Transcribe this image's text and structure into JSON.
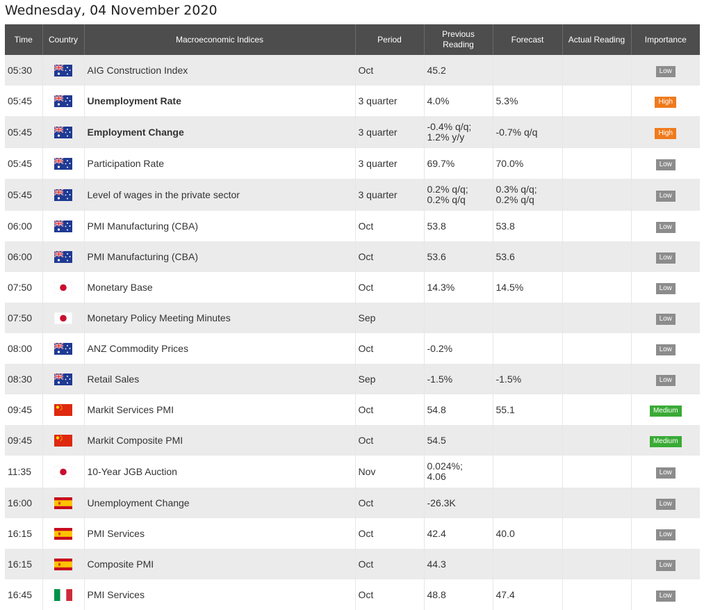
{
  "title": "Wednesday, 04 November 2020",
  "columns": [
    "Time",
    "Country",
    "Macroeconomic Indices",
    "Period",
    "Previous Reading",
    "Forecast",
    "Actual Reading",
    "Importance"
  ],
  "colors": {
    "Low": "#8c8c8c",
    "High": "#f07a1c",
    "Medium": "#3aaa35",
    "header_bg": "#4d4d4d",
    "row_alt": "#ebebeb"
  },
  "rows": [
    {
      "time": "05:30",
      "country": "australia-flag-icon",
      "index": "AIG Construction Index",
      "bold": false,
      "period": "Oct",
      "previous": "45.2",
      "forecast": "",
      "actual": "",
      "importance": "Low"
    },
    {
      "time": "05:45",
      "country": "australia-flag-icon",
      "index": "Unemployment Rate",
      "bold": true,
      "period": "3 quarter",
      "previous": "4.0%",
      "forecast": "5.3%",
      "actual": "",
      "importance": "High"
    },
    {
      "time": "05:45",
      "country": "australia-flag-icon",
      "index": "Employment Change",
      "bold": true,
      "period": "3 quarter",
      "previous": "-0.4% q/q;\n1.2% y/y",
      "forecast": "-0.7% q/q",
      "actual": "",
      "importance": "High"
    },
    {
      "time": "05:45",
      "country": "australia-flag-icon",
      "index": "Participation Rate",
      "bold": false,
      "period": "3 quarter",
      "previous": "69.7%",
      "forecast": "70.0%",
      "actual": "",
      "importance": "Low"
    },
    {
      "time": "05:45",
      "country": "australia-flag-icon",
      "index": "Level of wages in the private sector",
      "bold": false,
      "period": "3 quarter",
      "previous": "0.2% q/q;\n0.2% q/q",
      "forecast": "0.3% q/q;\n0.2% q/q",
      "actual": "",
      "importance": "Low"
    },
    {
      "time": "06:00",
      "country": "australia-flag-icon",
      "index": "PMI Manufacturing (CBA)",
      "bold": false,
      "period": "Oct",
      "previous": "53.8",
      "forecast": "53.8",
      "actual": "",
      "importance": "Low"
    },
    {
      "time": "06:00",
      "country": "australia-flag-icon",
      "index": "PMI Manufacturing (CBA)",
      "bold": false,
      "period": "Oct",
      "previous": "53.6",
      "forecast": "53.6",
      "actual": "",
      "importance": "Low"
    },
    {
      "time": "07:50",
      "country": "japan-flag-icon",
      "index": "Monetary Base",
      "bold": false,
      "period": "Oct",
      "previous": "14.3%",
      "forecast": "14.5%",
      "actual": "",
      "importance": "Low"
    },
    {
      "time": "07:50",
      "country": "japan-flag-icon",
      "index": "Monetary Policy Meeting Minutes",
      "bold": false,
      "period": "Sep",
      "previous": "",
      "forecast": "",
      "actual": "",
      "importance": "Low"
    },
    {
      "time": "08:00",
      "country": "australia-flag-icon",
      "index": "ANZ Commodity Prices",
      "bold": false,
      "period": "Oct",
      "previous": "-0.2%",
      "forecast": "",
      "actual": "",
      "importance": "Low"
    },
    {
      "time": "08:30",
      "country": "australia-flag-icon",
      "index": "Retail Sales",
      "bold": false,
      "period": "Sep",
      "previous": "-1.5%",
      "forecast": "-1.5%",
      "actual": "",
      "importance": "Low"
    },
    {
      "time": "09:45",
      "country": "china-flag-icon",
      "index": "Markit Services PMI",
      "bold": false,
      "period": "Oct",
      "previous": "54.8",
      "forecast": "55.1",
      "actual": "",
      "importance": "Medium"
    },
    {
      "time": "09:45",
      "country": "china-flag-icon",
      "index": "Markit Composite PMI",
      "bold": false,
      "period": "Oct",
      "previous": "54.5",
      "forecast": "",
      "actual": "",
      "importance": "Medium"
    },
    {
      "time": "11:35",
      "country": "japan-flag-icon",
      "index": "10-Year JGB Auction",
      "bold": false,
      "period": "Nov",
      "previous": "0.024%;\n4.06",
      "forecast": "",
      "actual": "",
      "importance": "Low"
    },
    {
      "time": "16:00",
      "country": "spain-flag-icon",
      "index": "Unemployment Change",
      "bold": false,
      "period": "Oct",
      "previous": "-26.3K",
      "forecast": "",
      "actual": "",
      "importance": "Low"
    },
    {
      "time": "16:15",
      "country": "spain-flag-icon",
      "index": "PMI Services",
      "bold": false,
      "period": "Oct",
      "previous": "42.4",
      "forecast": "40.0",
      "actual": "",
      "importance": "Low"
    },
    {
      "time": "16:15",
      "country": "spain-flag-icon",
      "index": "Composite PMI",
      "bold": false,
      "period": "Oct",
      "previous": "44.3",
      "forecast": "",
      "actual": "",
      "importance": "Low"
    },
    {
      "time": "16:45",
      "country": "italy-flag-icon",
      "index": "PMI Services",
      "bold": false,
      "period": "Oct",
      "previous": "48.8",
      "forecast": "47.4",
      "actual": "",
      "importance": "Low"
    }
  ]
}
